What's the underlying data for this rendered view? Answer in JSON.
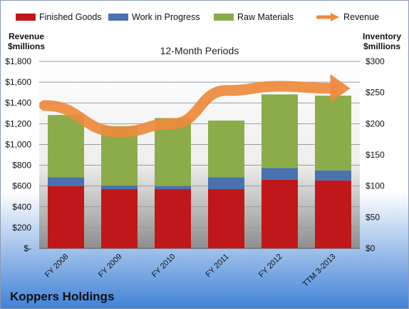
{
  "legend": [
    {
      "name": "Finished Goods",
      "color": "#c0171b"
    },
    {
      "name": "Work in Progress",
      "color": "#4a72b0"
    },
    {
      "name": "Raw Materials",
      "color": "#8cac4a"
    },
    {
      "name": "Revenue",
      "color": "#ee8a3c"
    }
  ],
  "left_axis_title": [
    "Revenue",
    "$millions"
  ],
  "right_axis_title": [
    "Inventory",
    "$millions"
  ],
  "subtitle": "12-Month Periods",
  "company": "Koppers Holdings",
  "chart_data": {
    "type": "bar",
    "stacked": true,
    "title": "12-Month Periods",
    "categories": [
      "FY 2008",
      "FY 2009",
      "FY 2010",
      "FY 2011",
      "FY 2012",
      "TTM 3-2013"
    ],
    "bar_axis": "right",
    "series": [
      {
        "name": "Finished Goods",
        "color": "#c0171b",
        "values": [
          100,
          95,
          95,
          95,
          110,
          109
        ]
      },
      {
        "name": "Work in Progress",
        "color": "#4a72b0",
        "values": [
          14,
          6,
          5,
          19,
          19,
          16
        ]
      },
      {
        "name": "Raw Materials",
        "color": "#8cac4a",
        "values": [
          100,
          95,
          109,
          91,
          118,
          120
        ]
      }
    ],
    "line": {
      "name": "Revenue",
      "axis": "left",
      "color": "#ee8a3c",
      "values": [
        1375,
        1120,
        1200,
        1520,
        1560,
        1540
      ]
    },
    "left_axis": {
      "label": "Revenue $millions",
      "ylim": [
        0,
        1800
      ],
      "ticks": [
        "$-",
        "$200",
        "$400",
        "$600",
        "$800",
        "$1,000",
        "$1,200",
        "$1,400",
        "$1,600",
        "$1,800"
      ]
    },
    "right_axis": {
      "label": "Inventory $millions",
      "ylim": [
        0,
        300
      ],
      "ticks": [
        "$0",
        "$50",
        "$100",
        "$150",
        "$200",
        "$250",
        "$300"
      ]
    },
    "grid": true,
    "legend_position": "top"
  }
}
